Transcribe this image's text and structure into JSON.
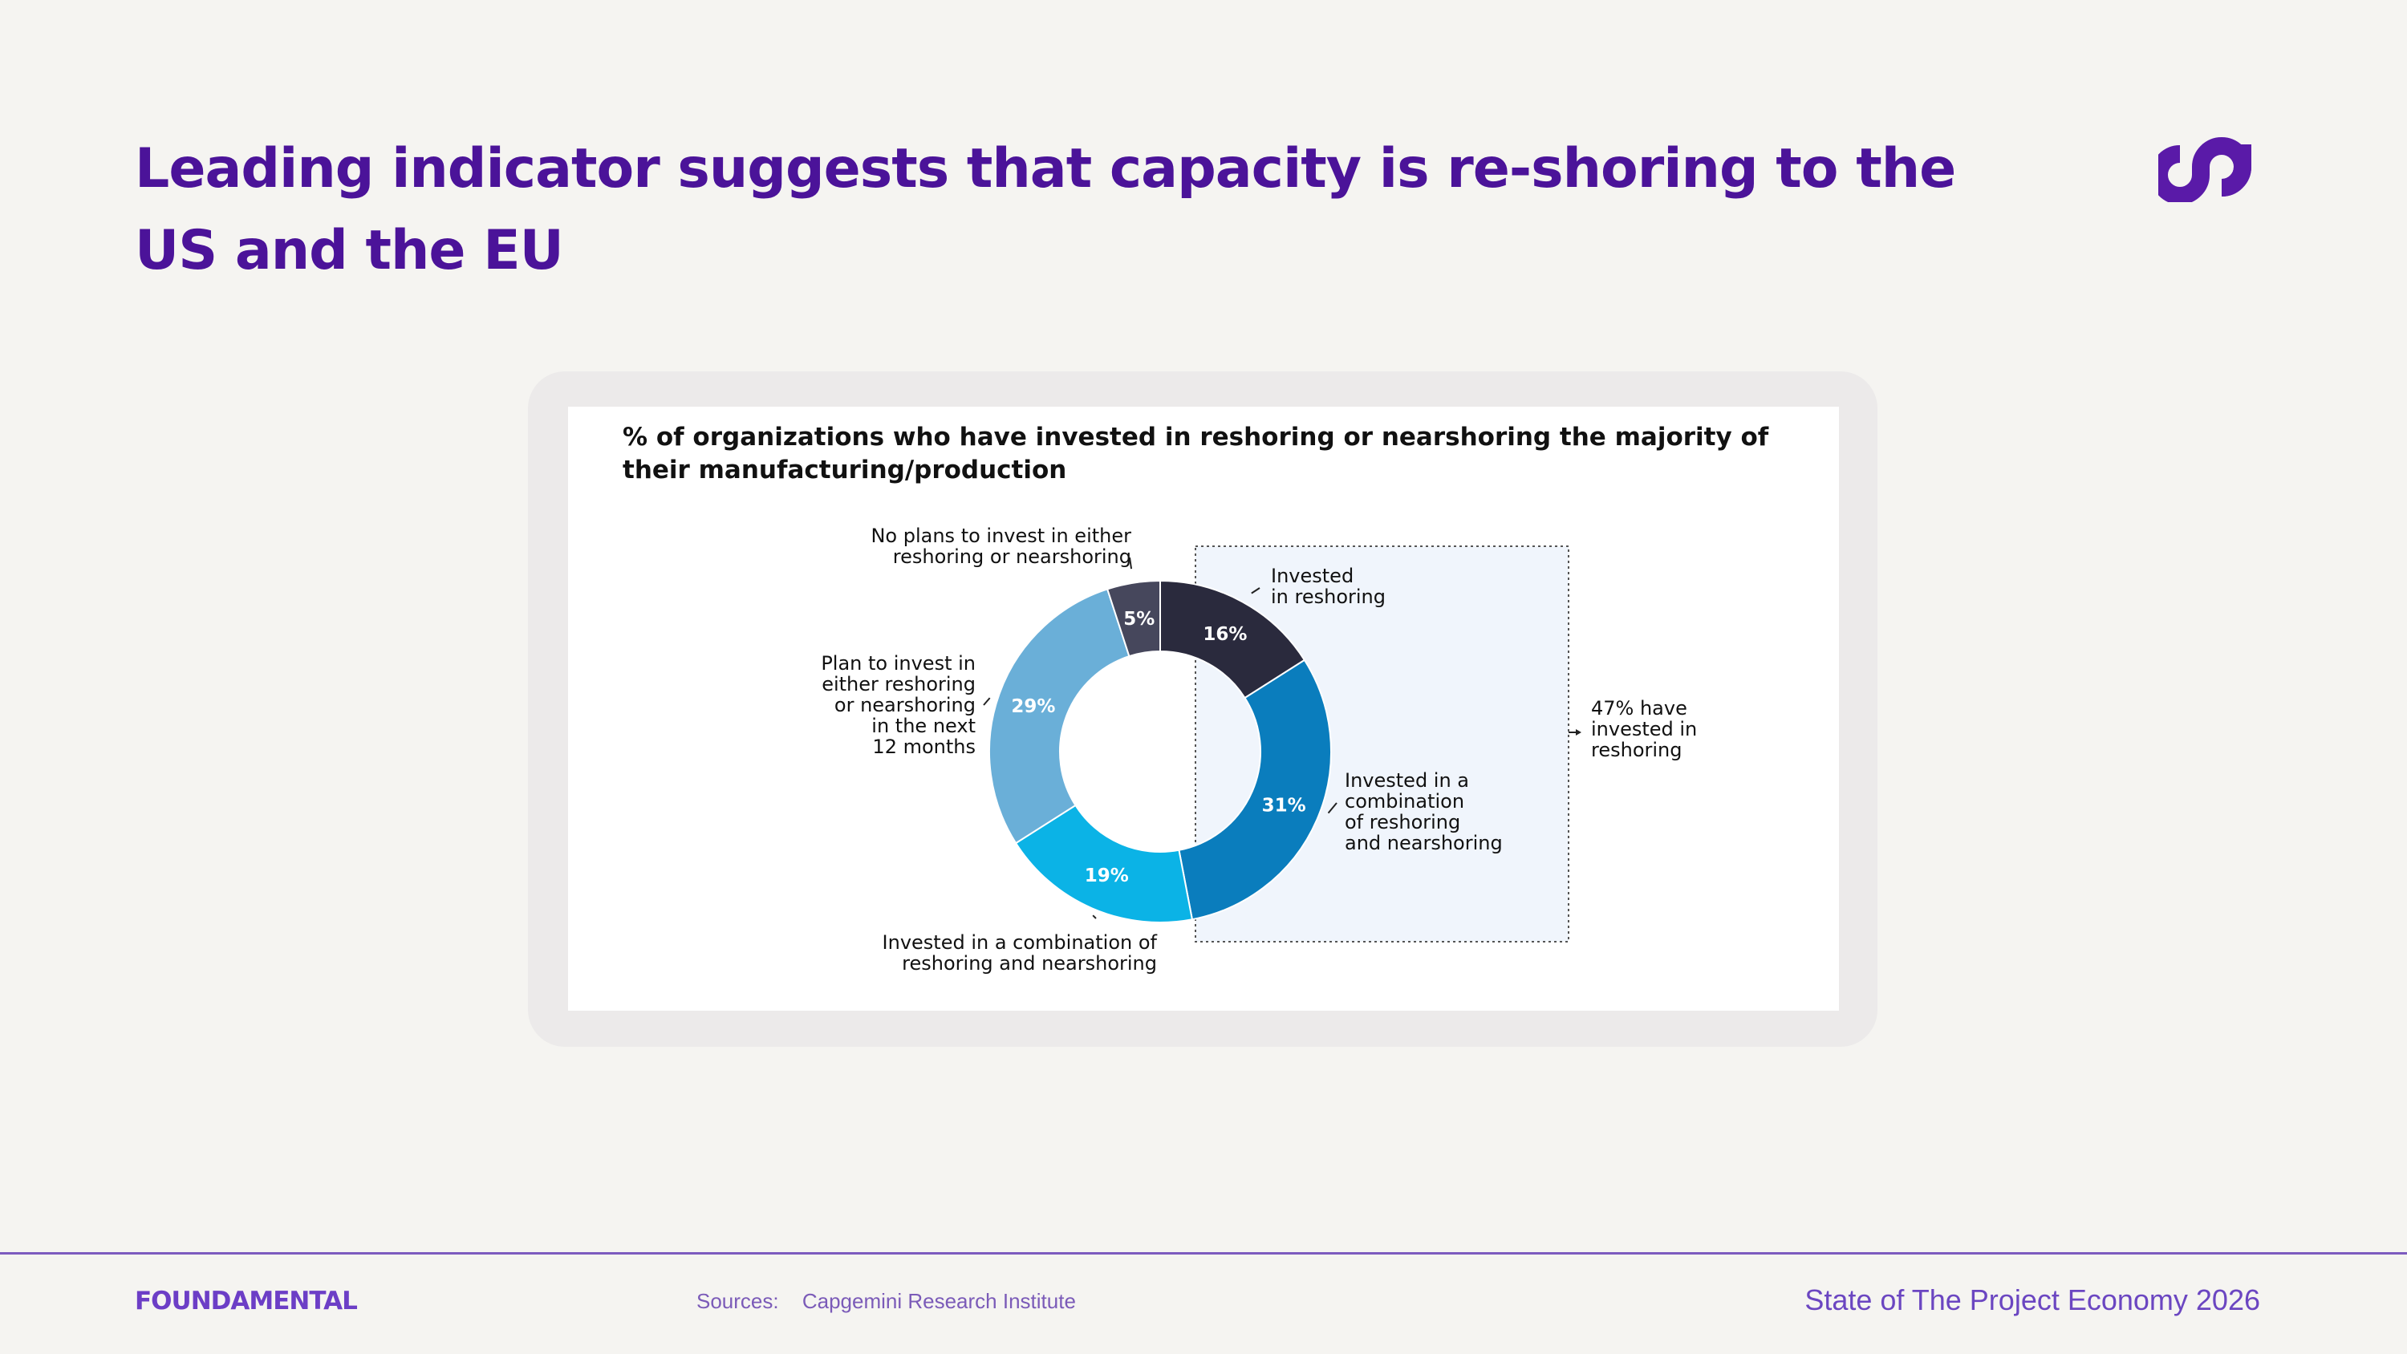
{
  "header": {
    "title": "Leading indicator suggests that capacity is re-shoring to the US and the EU",
    "logo_icon": "infinity-loop-icon"
  },
  "colors": {
    "brand_purple": "#4b1399",
    "logo_purple": "#5a1aa8",
    "background": "#f5f4f1",
    "highlight_box": "#f0f5fc"
  },
  "chart_data": {
    "type": "pie",
    "variant": "donut",
    "title": "% of organizations who have invested in reshoring or nearshoring the majority of their manufacturing/production",
    "slices": [
      {
        "label": "Invested in reshoring",
        "value": 16,
        "display": "16%",
        "color": "#2a2a3d"
      },
      {
        "label": "Invested in a combination of reshoring and nearshoring",
        "value": 31,
        "display": "31%",
        "color": "#0a7dbd"
      },
      {
        "label": "Invested in a combination of reshoring and nearshoring",
        "value": 19,
        "display": "19%",
        "color": "#0bb3e6"
      },
      {
        "label": "Plan to invest in either reshoring or nearshoring in the next 12 months",
        "value": 29,
        "display": "29%",
        "color": "#6aafd8"
      },
      {
        "label": "No plans to invest in either reshoring or nearshoring",
        "value": 5,
        "display": "5%",
        "color": "#46475c"
      }
    ],
    "annotations": {
      "slice_0_label": [
        "Invested",
        "in reshoring"
      ],
      "slice_1_label": [
        "Invested in a",
        "combination",
        "of reshoring",
        "and nearshoring"
      ],
      "slice_2_label": [
        "Invested in a combination of",
        "reshoring and nearshoring"
      ],
      "slice_3_label": [
        "Plan to invest in",
        "either reshoring",
        "or nearshoring",
        "in the next",
        "12 months"
      ],
      "slice_4_label": [
        "No plans to invest in either",
        "reshoring or nearshoring"
      ],
      "bracket_label": [
        "47% have",
        "invested in",
        "reshoring"
      ]
    }
  },
  "footer": {
    "logo": "FOUNDAMENTAL",
    "sources_label": "Sources:",
    "sources_value": "Capgemini Research Institute",
    "report_name": "State of The Project Economy 2026"
  }
}
